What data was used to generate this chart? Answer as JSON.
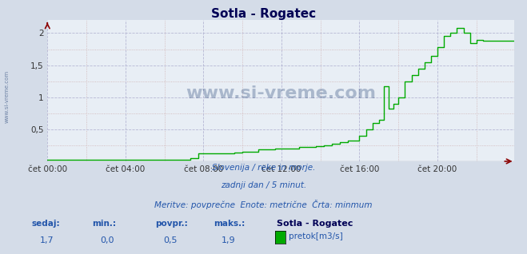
{
  "title": "Sotla - Rogatec",
  "bg_color": "#d4dce8",
  "plot_bg_color": "#e8eef5",
  "line_color": "#00aa00",
  "grid_color_major": "#aaaacc",
  "grid_color_minor": "#ccaaaa",
  "x_labels": [
    "čet 00:00",
    "čet 04:00",
    "čet 08:00",
    "čet 12:00",
    "čet 16:00",
    "čet 20:00"
  ],
  "x_ticks": [
    0,
    48,
    96,
    144,
    192,
    240
  ],
  "total_points": 288,
  "ylim": [
    0,
    2.2
  ],
  "y_ticks": [
    0.5,
    1.0,
    1.5,
    2.0
  ],
  "y_tick_labels": [
    "0,5",
    "1",
    "1,5",
    "2"
  ],
  "subtitle_line1": "Slovenija / reke in morje.",
  "subtitle_line2": "zadnji dan / 5 minut.",
  "subtitle_line3": "Meritve: povprečne  Enote: metrične  Črta: minmum",
  "stat_labels": [
    "sedaj:",
    "min.:",
    "povpr.:",
    "maks.:"
  ],
  "stat_values": [
    "1,7",
    "0,0",
    "0,5",
    "1,9"
  ],
  "legend_station": "Sotla - Rogatec",
  "legend_label": "pretok[m3/s]",
  "watermark": "www.si-vreme.com",
  "watermark_color": "#1a3a6e",
  "sidebar_text": "www.si-vreme.com",
  "title_color": "#000055",
  "subtitle_color": "#2255aa",
  "stat_label_color": "#2255aa",
  "stat_value_color": "#2255aa"
}
